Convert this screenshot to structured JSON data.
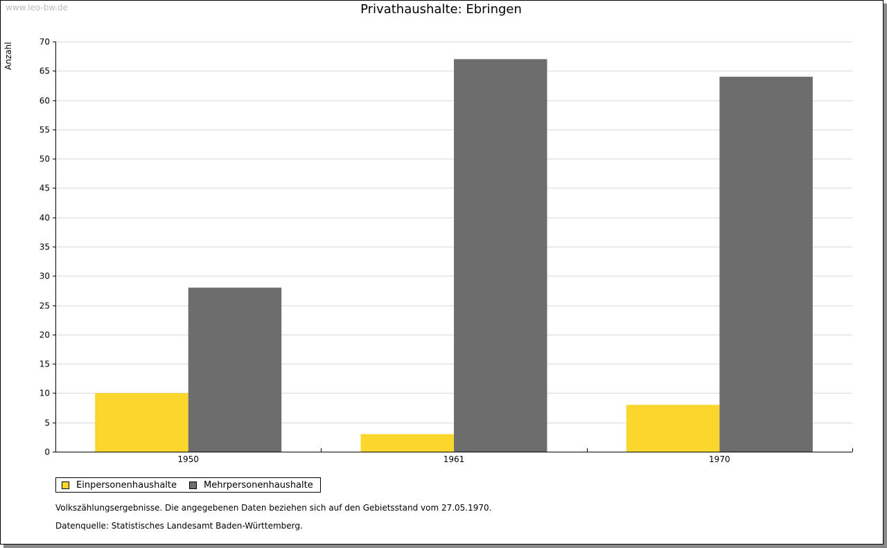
{
  "watermark": "www.leo-bw.de",
  "colors": {
    "series_1": "#fbd62d",
    "series_2": "#6d6d6d",
    "grid": "#d9d9d9",
    "axis": "#000000"
  },
  "chart_data": {
    "type": "bar",
    "title": "Privathaushalte: Ebringen",
    "xlabel": "",
    "ylabel": "Anzahl",
    "categories": [
      "1950",
      "1961",
      "1970"
    ],
    "series": [
      {
        "name": "Einpersonenhaushalte",
        "values": [
          10,
          3,
          8
        ]
      },
      {
        "name": "Mehrpersonenhaushalte",
        "values": [
          28,
          67,
          64
        ]
      }
    ],
    "ylim": [
      0,
      70
    ],
    "yticks": [
      0,
      5,
      10,
      15,
      20,
      25,
      30,
      35,
      40,
      45,
      50,
      55,
      60,
      65,
      70
    ],
    "grid": true,
    "legend_position": "bottom-left"
  },
  "notes": {
    "line1": "Volkszählungsergebnisse. Die angegebenen Daten beziehen sich auf den Gebietsstand vom 27.05.1970.",
    "line2": "Datenquelle: Statistisches Landesamt Baden-Württemberg."
  }
}
